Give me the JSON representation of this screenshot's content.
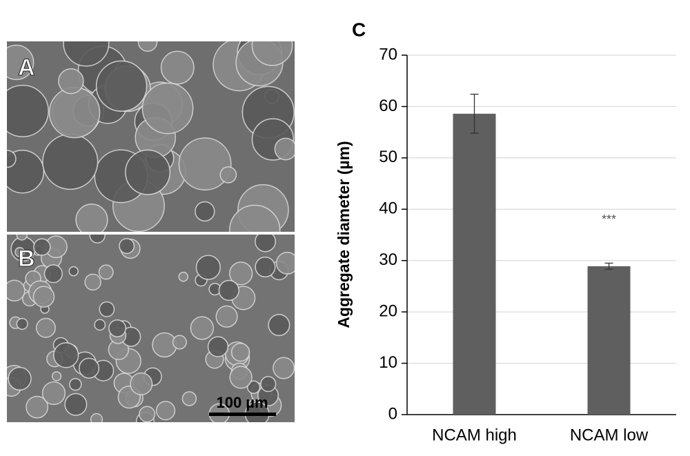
{
  "panels": {
    "a_label": "A",
    "b_label": "B",
    "scale_bar": "100 µm"
  },
  "chart_data": {
    "type": "bar",
    "title": "C",
    "y_label": "Aggregate diameter (µm)",
    "categories": [
      "NCAM high",
      "NCAM low"
    ],
    "values": [
      58.6,
      28.9
    ],
    "errors": [
      3.8,
      0.6
    ],
    "annotations": [
      {
        "category": 1,
        "text": "***"
      }
    ],
    "color": "#5f5f5f",
    "ylim": [
      0,
      70
    ],
    "yticks": [
      0,
      10,
      20,
      30,
      40,
      50,
      60,
      70
    ],
    "grid": true
  }
}
